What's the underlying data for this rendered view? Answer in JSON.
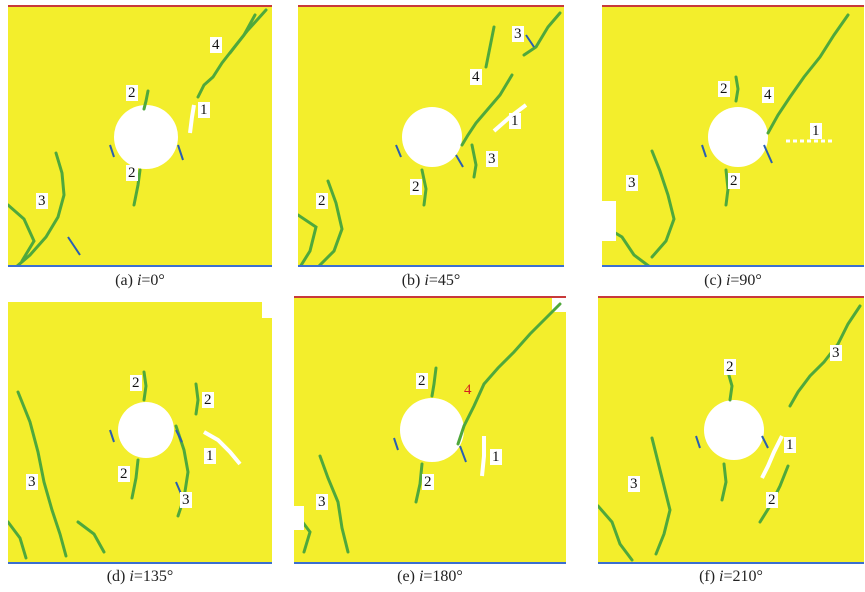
{
  "colors": {
    "field": "#f3ee2c",
    "crack_green": "#4fa83c",
    "crack_blue": "#2a5fb0",
    "hole": "#ffffff",
    "edge_red": "#c83a3a",
    "edge_blue": "#3b6fd0",
    "label_red": "#d42020"
  },
  "panels": [
    {
      "id": "a",
      "caption_prefix": "(a) ",
      "caption_var": "i",
      "caption_value": "=0",
      "caption_unit": "°",
      "labels": [
        "4",
        "2",
        "1",
        "2",
        "3"
      ]
    },
    {
      "id": "b",
      "caption_prefix": "(b) ",
      "caption_var": "i",
      "caption_value": "=45",
      "caption_unit": "°",
      "labels": [
        "3",
        "4",
        "1",
        "2",
        "3",
        "2"
      ]
    },
    {
      "id": "c",
      "caption_prefix": "(c) ",
      "caption_var": "i",
      "caption_value": "=90",
      "caption_unit": "°",
      "labels": [
        "2",
        "4",
        "1",
        "3",
        "2"
      ]
    },
    {
      "id": "d",
      "caption_prefix": "(d) ",
      "caption_var": "i",
      "caption_value": "=135",
      "caption_unit": "°",
      "labels": [
        "2",
        "2",
        "1",
        "3",
        "2",
        "3"
      ]
    },
    {
      "id": "e",
      "caption_prefix": "(e) ",
      "caption_var": "i",
      "caption_value": "=180",
      "caption_unit": "°",
      "labels": [
        "2",
        "4",
        "1",
        "2",
        "3"
      ]
    },
    {
      "id": "f",
      "caption_prefix": "(f) ",
      "caption_var": "i",
      "caption_value": "=210",
      "caption_unit": "°",
      "labels": [
        "2",
        "3",
        "1",
        "3",
        "2"
      ]
    }
  ]
}
